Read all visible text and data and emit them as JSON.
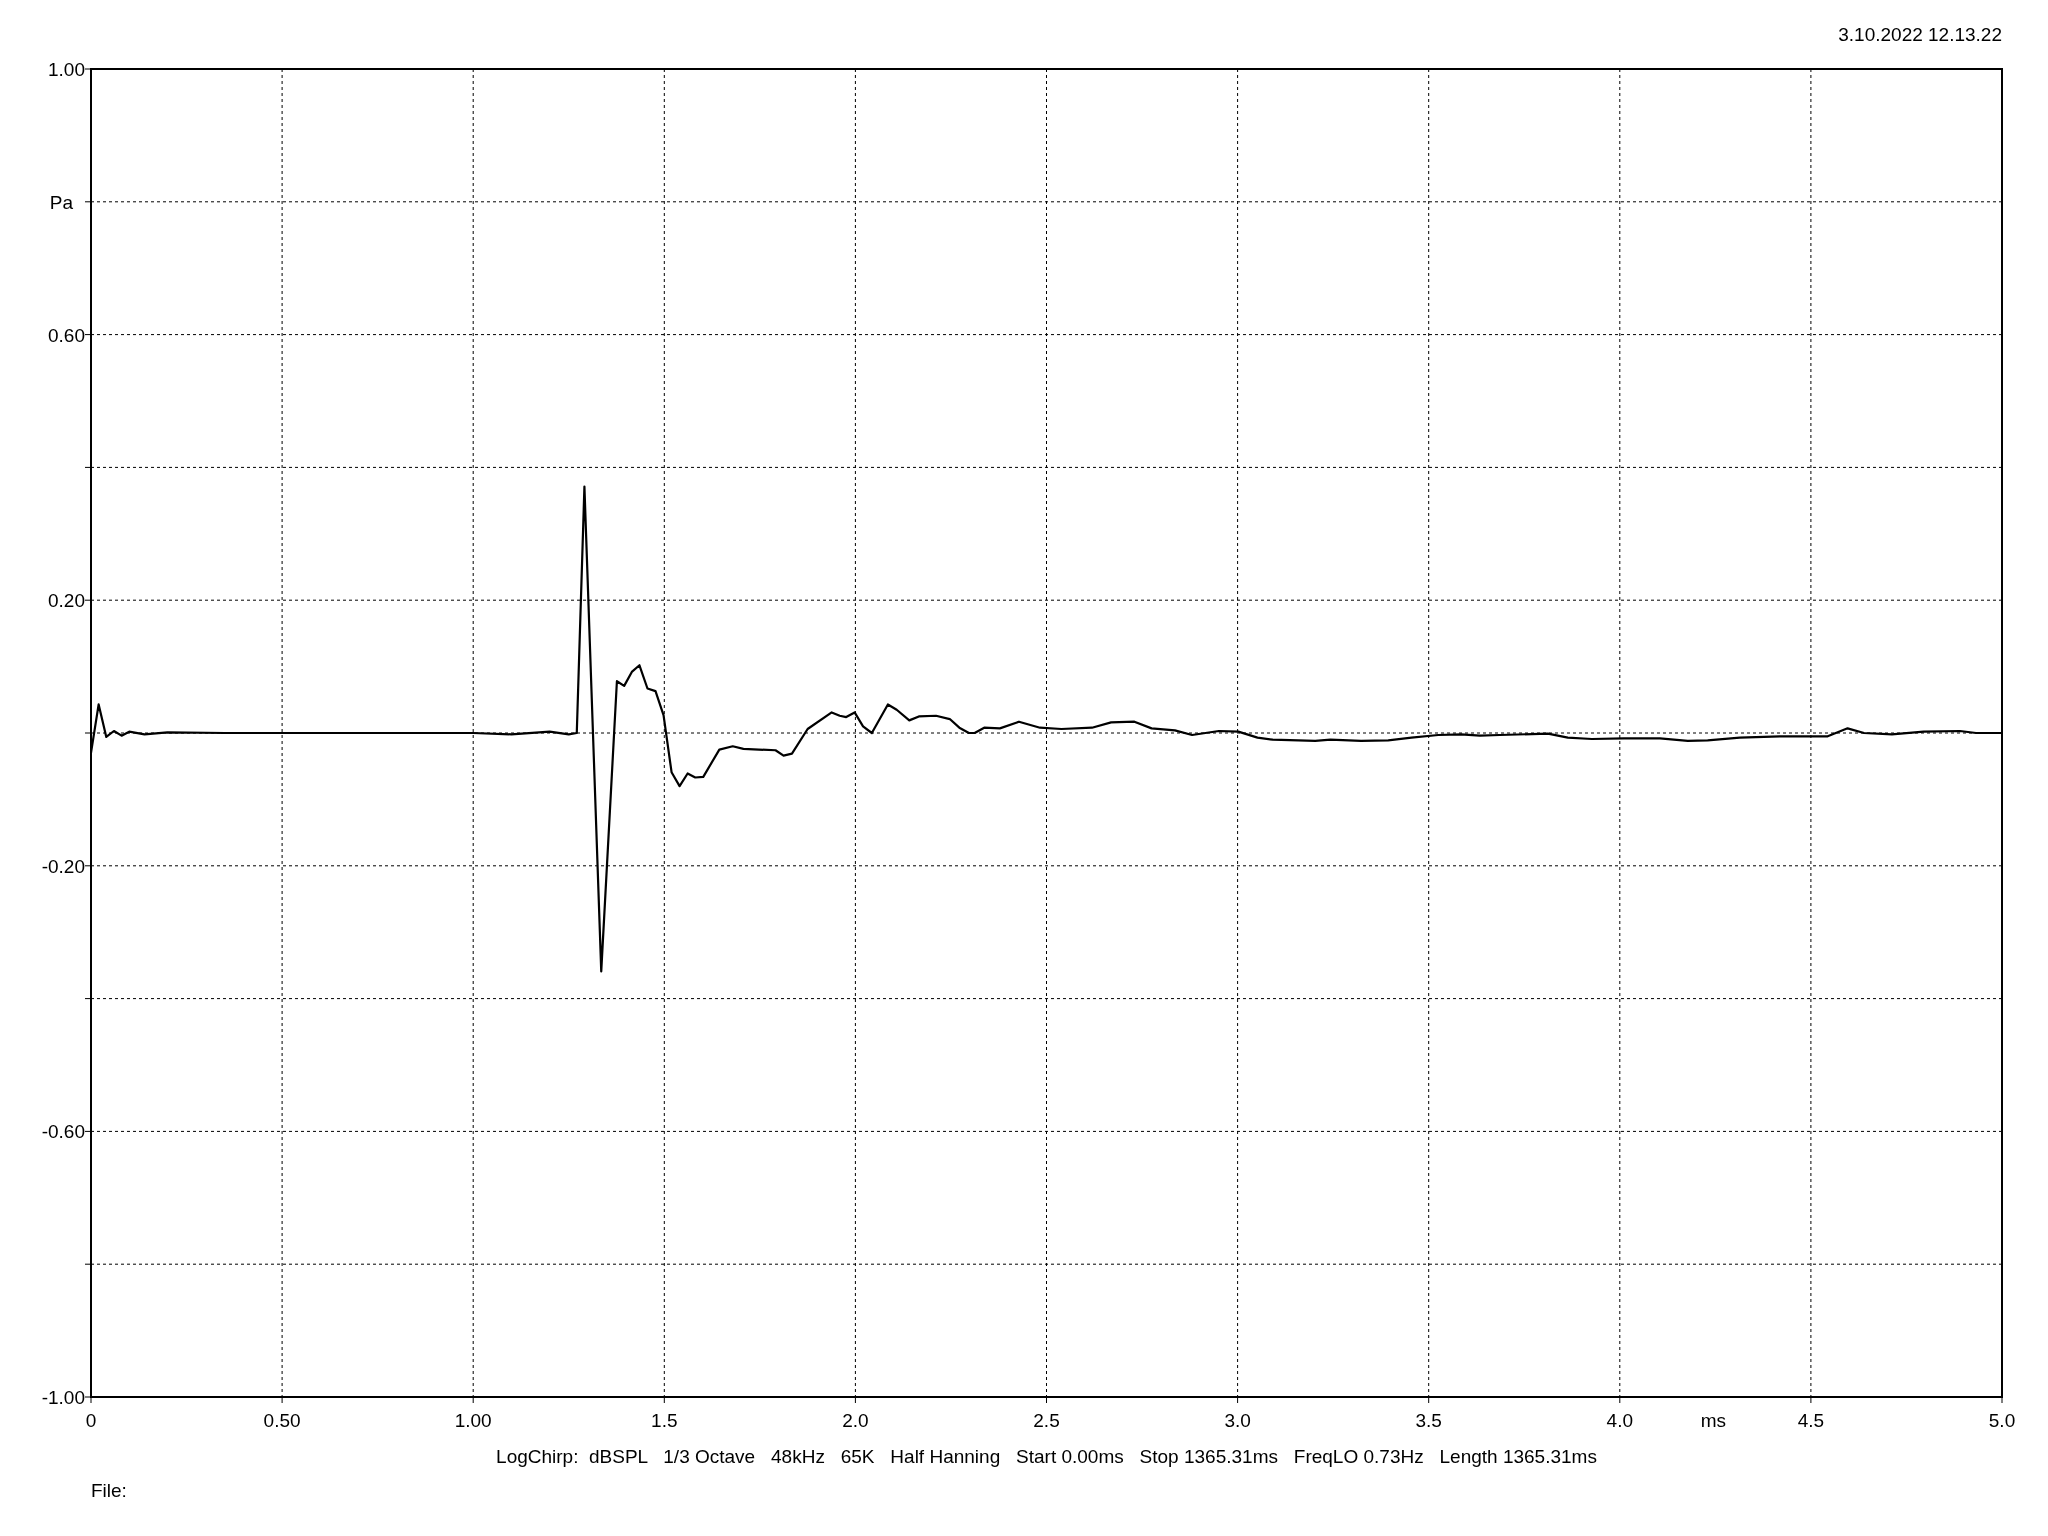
{
  "chart_data": {
    "type": "line",
    "xlabel": "ms",
    "ylabel": "Pa",
    "annotations": [
      "3.10.2022 12.13.22",
      "LogChirp:  dBSPL   1/3 Octave   48kHz   65K   Half Hanning   Start 0.00ms   Stop 1365.31ms   FreqLO 0.73Hz   Length 1365.31ms",
      "File:"
    ],
    "xlim": [
      0,
      5
    ],
    "ylim": [
      -1,
      1
    ],
    "xticks": [
      {
        "value": 0,
        "label": "0"
      },
      {
        "value": 0.5,
        "label": "0.50"
      },
      {
        "value": 1,
        "label": "1.00"
      },
      {
        "value": 1.5,
        "label": "1.5"
      },
      {
        "value": 2,
        "label": "2.0"
      },
      {
        "value": 2.5,
        "label": "2.5"
      },
      {
        "value": 3,
        "label": "3.0"
      },
      {
        "value": 3.5,
        "label": "3.5"
      },
      {
        "value": 4,
        "label": "4.0"
      },
      {
        "value": 4.5,
        "label": "4.5"
      },
      {
        "value": 5,
        "label": "5.0"
      }
    ],
    "yticks": [
      {
        "value": -1,
        "label": "-1.00"
      },
      {
        "value": -0.8,
        "label": null
      },
      {
        "value": -0.6,
        "label": "-0.60"
      },
      {
        "value": -0.4,
        "label": null
      },
      {
        "value": -0.2,
        "label": "-0.20"
      },
      {
        "value": 0,
        "label": null
      },
      {
        "value": 0.2,
        "label": "0.20"
      },
      {
        "value": 0.4,
        "label": null
      },
      {
        "value": 0.6,
        "label": "0.60"
      },
      {
        "value": 0.8,
        "label": null
      },
      {
        "value": 1,
        "label": "1.00"
      }
    ],
    "grid": true,
    "marker": "none",
    "line_style": "solid",
    "series": [
      {
        "color": "#000000",
        "x": [
          0,
          0.02,
          0.04,
          0.06,
          0.08,
          0.1,
          0.14,
          0.2,
          0.35,
          1.0,
          1.1,
          1.2,
          1.25,
          1.271,
          1.291,
          1.335,
          1.376,
          1.395,
          1.415,
          1.435,
          1.456,
          1.477,
          1.498,
          1.519,
          1.54,
          1.561,
          1.581,
          1.602,
          1.644,
          1.679,
          1.707,
          1.791,
          1.812,
          1.834,
          1.875,
          1.938,
          1.959,
          1.976,
          1.998,
          2.02,
          2.043,
          2.085,
          2.108,
          2.141,
          2.166,
          2.211,
          2.247,
          2.272,
          2.297,
          2.312,
          2.337,
          2.378,
          2.428,
          2.483,
          2.539,
          2.619,
          2.669,
          2.73,
          2.775,
          2.836,
          2.881,
          2.951,
          3.002,
          3.052,
          3.092,
          3.203,
          3.243,
          3.323,
          3.394,
          3.455,
          3.525,
          3.585,
          3.634,
          3.686,
          3.812,
          3.864,
          3.927,
          4.011,
          4.105,
          4.178,
          4.23,
          4.314,
          4.419,
          4.544,
          4.596,
          4.639,
          4.712,
          4.795,
          4.89,
          4.932,
          5.0
        ],
        "values": [
          -0.03,
          0.043,
          -0.006,
          0.003,
          -0.004,
          0.002,
          -0.002,
          0.001,
          0,
          0,
          -0.002,
          0.002,
          -0.002,
          0,
          0.371,
          -0.359,
          0.078,
          0.071,
          0.092,
          0.102,
          0.067,
          0.063,
          0.027,
          -0.059,
          -0.08,
          -0.061,
          -0.067,
          -0.066,
          -0.025,
          -0.02,
          -0.024,
          -0.026,
          -0.034,
          -0.031,
          0.006,
          0.031,
          0.026,
          0.024,
          0.031,
          0.01,
          0,
          0.043,
          0.035,
          0.019,
          0.025,
          0.026,
          0.021,
          0.008,
          0,
          0,
          0.008,
          0.007,
          0.017,
          0.008,
          0.006,
          0.008,
          0.016,
          0.017,
          0.007,
          0.004,
          -0.003,
          0.003,
          0.002,
          -0.007,
          -0.01,
          -0.012,
          -0.01,
          -0.012,
          -0.011,
          -0.007,
          -0.003,
          -0.002,
          -0.004,
          -0.003,
          -0.001,
          -0.007,
          -0.009,
          -0.008,
          -0.008,
          -0.012,
          -0.011,
          -0.007,
          -0.005,
          -0.005,
          0.007,
          0,
          -0.002,
          0.002,
          0.003,
          0,
          0
        ]
      }
    ]
  }
}
